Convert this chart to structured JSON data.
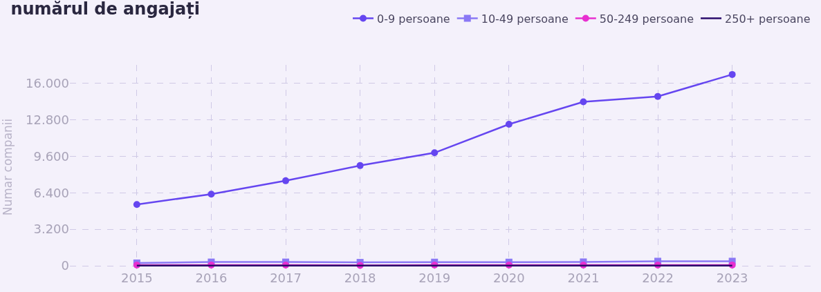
{
  "chart_data": {
    "type": "line",
    "title": "numărul de angajați",
    "ylabel": "Numar companii",
    "categories": [
      "2015",
      "2016",
      "2017",
      "2018",
      "2019",
      "2020",
      "2021",
      "2022",
      "2023"
    ],
    "series": [
      {
        "name": "0-9 persoane",
        "color": "#6546f0",
        "marker": "circle",
        "values": [
          5370,
          6280,
          7450,
          8780,
          9900,
          12400,
          14360,
          14840,
          16760
        ]
      },
      {
        "name": "10-49 persoane",
        "color": "#8a78f5",
        "marker": "square",
        "values": [
          250,
          330,
          330,
          300,
          320,
          320,
          340,
          400,
          400
        ]
      },
      {
        "name": "50-249 persoane",
        "color": "#e82fd0",
        "marker": "circle",
        "values": [
          60,
          70,
          60,
          40,
          60,
          60,
          60,
          60,
          70
        ]
      },
      {
        "name": "250+ persoane",
        "color": "#2a0a6b",
        "marker": "none",
        "values": [
          10,
          10,
          10,
          10,
          10,
          10,
          10,
          10,
          10
        ]
      }
    ],
    "ylim": [
      -300,
      17600
    ],
    "yticks": [
      {
        "value": 0,
        "label": "0"
      },
      {
        "value": 3200,
        "label": "3.200"
      },
      {
        "value": 6400,
        "label": "6.400"
      },
      {
        "value": 9600,
        "label": "9.600"
      },
      {
        "value": 12800,
        "label": "12.800"
      },
      {
        "value": 16000,
        "label": "16.000"
      }
    ],
    "grid": true,
    "legend": "top right",
    "line_style": "solid"
  }
}
